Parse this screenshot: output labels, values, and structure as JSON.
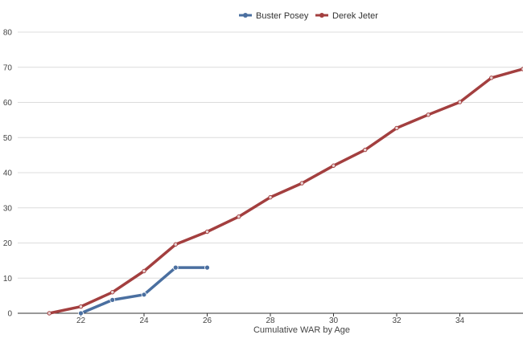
{
  "chart_data": {
    "type": "line",
    "title": "",
    "xlabel": "Cumulative WAR by Age",
    "ylabel": "",
    "xlim": [
      20,
      36
    ],
    "ylim": [
      0,
      80
    ],
    "x_ticks": [
      22,
      24,
      26,
      28,
      30,
      32,
      34
    ],
    "y_ticks": [
      0,
      10,
      20,
      30,
      40,
      50,
      60,
      70,
      80
    ],
    "grid": "horizontal",
    "legend_position": "top-center",
    "series": [
      {
        "name": "Buster Posey",
        "color": "#4a6fa0",
        "points": [
          [
            22,
            0
          ],
          [
            23,
            3.8
          ],
          [
            24,
            5.3
          ],
          [
            25,
            13
          ],
          [
            26,
            13
          ]
        ]
      },
      {
        "name": "Derek Jeter",
        "color": "#a33f3f",
        "points": [
          [
            21,
            0
          ],
          [
            22,
            1.9
          ],
          [
            23,
            6
          ],
          [
            24,
            12
          ],
          [
            25,
            19.6
          ],
          [
            26,
            23.2
          ],
          [
            27,
            27.5
          ],
          [
            28,
            33
          ],
          [
            29,
            37
          ],
          [
            30,
            42
          ],
          [
            31,
            46.5
          ],
          [
            32,
            52.7
          ],
          [
            33,
            56.5
          ],
          [
            34,
            60.1
          ],
          [
            35,
            67
          ],
          [
            36,
            69.5
          ]
        ]
      }
    ]
  }
}
